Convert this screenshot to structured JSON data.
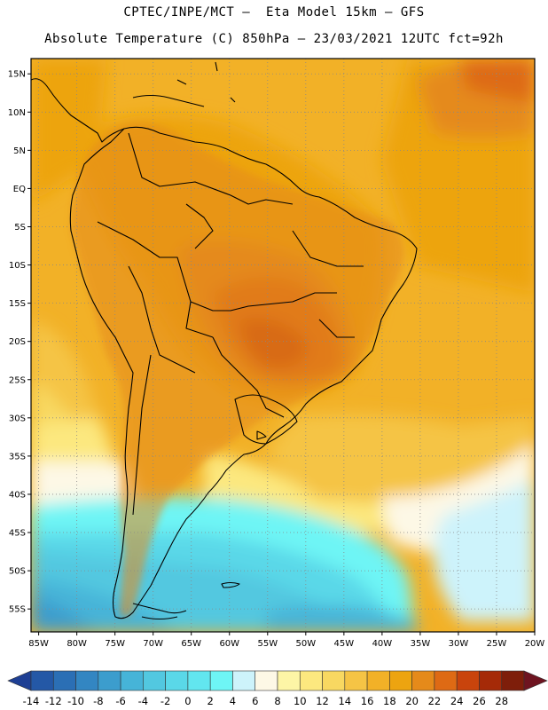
{
  "header": {
    "line1": "CPTEC/INPE/MCT –  Eta Model 15km – GFS",
    "line2": "Absolute Temperature (C) 850hPa – 23/03/2021 12UTC fct=92h"
  },
  "map": {
    "lat_labels": [
      "15N",
      "10N",
      "5N",
      "EQ",
      "5S",
      "10S",
      "15S",
      "20S",
      "25S",
      "30S",
      "35S",
      "40S",
      "45S",
      "50S",
      "55S"
    ],
    "lat_values": [
      15,
      10,
      5,
      0,
      -5,
      -10,
      -15,
      -20,
      -25,
      -30,
      -35,
      -40,
      -45,
      -50,
      -55
    ],
    "lon_labels": [
      "85W",
      "80W",
      "75W",
      "70W",
      "65W",
      "60W",
      "55W",
      "50W",
      "45W",
      "40W",
      "35W",
      "30W",
      "25W",
      "20W"
    ],
    "lon_values": [
      -85,
      -80,
      -75,
      -70,
      -65,
      -60,
      -55,
      -50,
      -45,
      -40,
      -35,
      -30,
      -25,
      -20
    ],
    "lon_range": [
      -86,
      -20
    ],
    "lat_range": [
      -58,
      17
    ],
    "gridlines": "dotted"
  },
  "colorbar": {
    "labels": [
      "-14",
      "-12",
      "-10",
      "-8",
      "-6",
      "-4",
      "-2",
      "0",
      "2",
      "4",
      "6",
      "8",
      "10",
      "12",
      "14",
      "16",
      "18",
      "20",
      "22",
      "24",
      "26",
      "28"
    ],
    "colors": [
      "#1e3f94",
      "#2458a6",
      "#2b6fb5",
      "#3386c2",
      "#3c9dcd",
      "#46b4d8",
      "#52c8e0",
      "#5ad8e8",
      "#62e6ef",
      "#6ef5f5",
      "#cdf3fb",
      "#fdf8e6",
      "#fdf5a6",
      "#fce87f",
      "#f8d861",
      "#f5c445",
      "#f2b127",
      "#eda410",
      "#e58a1a",
      "#de6a14",
      "#c9440c",
      "#a52a08",
      "#7e1e0a",
      "#6e1420"
    ]
  }
}
